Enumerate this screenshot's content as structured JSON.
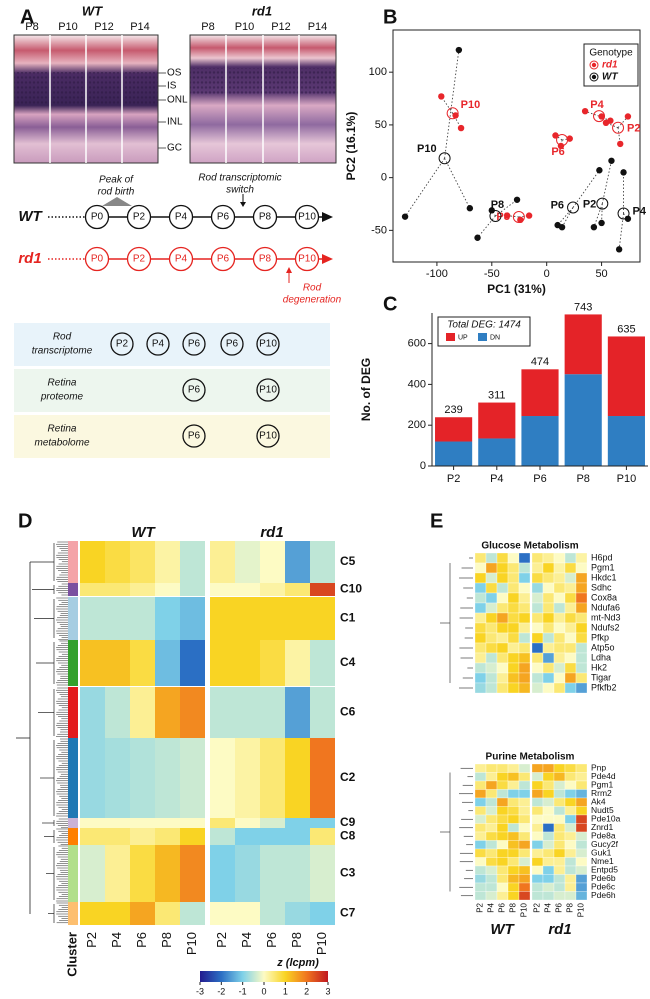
{
  "panel_a": {
    "label": "A",
    "wt_title": "WT",
    "rd1_title": "rd1",
    "wt_ages": [
      "P8",
      "P10",
      "P12",
      "P14"
    ],
    "rd1_ages": [
      "P8",
      "P10",
      "P12",
      "P14"
    ],
    "layers": [
      "OS",
      "IS",
      "ONL",
      "INL",
      "GC"
    ],
    "timeline": {
      "wt_label": "WT",
      "rd1_label": "rd1",
      "wt_color": "#111111",
      "rd1_color": "#e52420",
      "stages": [
        "P0",
        "P2",
        "P4",
        "P6",
        "P8",
        "P10"
      ],
      "peak_note": [
        "Peak of",
        "rod birth"
      ],
      "switch_note": [
        "Rod transcriptomic",
        "switch"
      ],
      "degeneration_note": [
        "Rod",
        "degeneration"
      ]
    },
    "table": [
      {
        "label": [
          "Rod",
          "transcriptome"
        ],
        "color": "#e8f3fa",
        "stages": [
          "P2",
          "P4",
          "P6",
          "P6",
          "P10"
        ]
      },
      {
        "label": [
          "Retina",
          "proteome"
        ],
        "color": "#edf6ee",
        "stages": [
          null,
          null,
          "P6",
          null,
          "P10"
        ]
      },
      {
        "label": [
          "Retina",
          "metabolome"
        ],
        "color": "#fbf8e0",
        "stages": [
          null,
          null,
          "P6",
          null,
          "P10"
        ]
      }
    ]
  },
  "chart_data": [
    {
      "type": "scatter",
      "panel_label": "B",
      "xlabel": "PC1 (31%)",
      "ylabel": "PC2 (16.1%)",
      "xlim": [
        -140,
        85
      ],
      "ylim": [
        -80,
        140
      ],
      "xticks": [
        -100,
        -50,
        0,
        50
      ],
      "yticks": [
        -50,
        0,
        50,
        100
      ],
      "legend_title": "Genotype",
      "legend": "top-right",
      "series": [
        {
          "name": "rd1",
          "color": "#e8262b",
          "groups": [
            {
              "label": "P10",
              "x": [
                -96,
                -83,
                -78
              ],
              "y": [
                77,
                59,
                47
              ]
            },
            {
              "label": "P4",
              "x": [
                35,
                50,
                58
              ],
              "y": [
                63,
                58,
                54
              ]
            },
            {
              "label": "P2",
              "x": [
                54,
                67,
                74
              ],
              "y": [
                52,
                32,
                58
              ]
            },
            {
              "label": "P6",
              "x": [
                8,
                13,
                21
              ],
              "y": [
                40,
                30,
                37
              ]
            },
            {
              "label": "P8",
              "x": [
                -36,
                -24,
                -16
              ],
              "y": [
                -36,
                -40,
                -36
              ]
            }
          ]
        },
        {
          "name": "WT",
          "color": "#111111",
          "groups": [
            {
              "label": "P10",
              "x": [
                -80,
                -129,
                -70
              ],
              "y": [
                121,
                -37,
                -29
              ]
            },
            {
              "label": "P8",
              "x": [
                -63,
                -50,
                -27
              ],
              "y": [
                -57,
                -31,
                -21
              ]
            },
            {
              "label": "P6",
              "x": [
                10,
                14,
                48
              ],
              "y": [
                -45,
                -47,
                7
              ]
            },
            {
              "label": "P2",
              "x": [
                43,
                50,
                59
              ],
              "y": [
                -47,
                -43,
                16
              ]
            },
            {
              "label": "P4",
              "x": [
                70,
                66,
                74
              ],
              "y": [
                5,
                -68,
                -39
              ]
            }
          ]
        }
      ]
    },
    {
      "type": "bar",
      "stacked": true,
      "panel_label": "C",
      "ylabel": "No. of DEG",
      "categories": [
        "P2",
        "P4",
        "P6",
        "P8",
        "P10"
      ],
      "ylim": [
        0,
        750
      ],
      "yticks": [
        0,
        200,
        400,
        600
      ],
      "legend_title": "Total DEG: 1474",
      "legend": "top-left",
      "series": [
        {
          "name": "DN",
          "color": "#2f7ec2",
          "values": [
            120,
            135,
            245,
            450,
            245
          ]
        },
        {
          "name": "UP",
          "color": "#e42328",
          "values": [
            119,
            176,
            229,
            293,
            390
          ]
        }
      ],
      "totals": [
        239,
        311,
        474,
        743,
        635
      ]
    }
  ],
  "panel_d": {
    "label": "D",
    "wt_title": "WT",
    "rd1_title": "rd1",
    "cluster_axis": "Cluster",
    "columns": [
      "P2",
      "P4",
      "P6",
      "P8",
      "P10"
    ],
    "clusters": [
      {
        "name": "C5",
        "color": "#f4a3a8",
        "wt": [
          1,
          0.8,
          0.6,
          0.2,
          -0.5
        ],
        "rd1": [
          0.3,
          -0.2,
          0,
          -1.5,
          -0.5
        ]
      },
      {
        "name": "C10",
        "color": "#7b4fa0",
        "wt": [
          0.5,
          0.5,
          0.3,
          0,
          -0.5
        ],
        "rd1": [
          0,
          0,
          0.2,
          0.5,
          2.5
        ]
      },
      {
        "name": "C1",
        "color": "#a6cde2",
        "wt": [
          -0.5,
          -0.5,
          -0.5,
          -1,
          -1.2
        ],
        "rd1": [
          1,
          1,
          1,
          1,
          1
        ]
      },
      {
        "name": "C4",
        "color": "#33a02c",
        "wt": [
          1.2,
          1.2,
          0.8,
          -1.2,
          -2
        ],
        "rd1": [
          1,
          1,
          0.8,
          0.2,
          -0.5
        ]
      },
      {
        "name": "C6",
        "color": "#e31a1c",
        "wt": [
          -0.8,
          -0.5,
          0.3,
          1.5,
          1.8
        ],
        "rd1": [
          -0.5,
          -0.5,
          -0.5,
          -1.5,
          -0.5
        ]
      },
      {
        "name": "C2",
        "color": "#1f78b4",
        "wt": [
          -0.8,
          -0.7,
          -0.6,
          -0.5,
          -0.4
        ],
        "rd1": [
          0,
          0.2,
          0.5,
          1,
          2
        ]
      },
      {
        "name": "C9",
        "color": "#cab2d6",
        "wt": [
          0,
          0,
          0,
          0,
          0
        ],
        "rd1": [
          0.5,
          0,
          -0.3,
          -1,
          -1
        ]
      },
      {
        "name": "C8",
        "color": "#ff7f00",
        "wt": [
          0.5,
          0.5,
          0.3,
          0.5,
          1
        ],
        "rd1": [
          -0.5,
          -1,
          -1,
          -1,
          0.5
        ]
      },
      {
        "name": "C3",
        "color": "#b2df8a",
        "wt": [
          -0.3,
          0.3,
          0.8,
          1.3,
          1.8
        ],
        "rd1": [
          -1,
          -0.8,
          -0.5,
          -0.5,
          -0.3
        ]
      },
      {
        "name": "C7",
        "color": "#fdbf6f",
        "wt": [
          1,
          1,
          1.5,
          0.5,
          -0.5
        ],
        "rd1": [
          0,
          0,
          -0.5,
          -0.8,
          -1
        ]
      }
    ],
    "colorbar": {
      "title": "z (lcpm)",
      "lim": [
        -3,
        3
      ],
      "ticks": [
        -3,
        -2,
        -1,
        0,
        1,
        2,
        3
      ],
      "colors": [
        "#231b8f",
        "#2b6fc4",
        "#7fd1e8",
        "#fdfbc4",
        "#f9d423",
        "#f0761f",
        "#c01820"
      ]
    }
  },
  "panel_e": {
    "label": "E",
    "wt_title": "WT",
    "rd1_title": "rd1",
    "columns": [
      "P2",
      "P4",
      "P6",
      "P8",
      "P10"
    ],
    "heatmaps": [
      {
        "title": "Glucose Metabolism",
        "rows": [
          "H6pd",
          "Pgm1",
          "Hkdc1",
          "Sdhc",
          "Cox8a",
          "Ndufa6",
          "mt-Nd3",
          "Ndufs2",
          "Pfkp",
          "Atp5o",
          "Ldha",
          "Hk2",
          "Tigar",
          "Pfkfb2"
        ],
        "wt": [
          [
            0.5,
            -0.5,
            0.8,
            0,
            -2
          ],
          [
            0,
            1.5,
            1,
            0.5,
            -0.5
          ],
          [
            1,
            -0.3,
            1,
            0.5,
            -1
          ],
          [
            -1,
            0.8,
            -0.5,
            0.5,
            0
          ],
          [
            -0.5,
            -1,
            0,
            1,
            0.3
          ],
          [
            -1,
            -0.3,
            0.5,
            0.8,
            0.5
          ],
          [
            0.3,
            1,
            1.5,
            0.8,
            1
          ],
          [
            0.8,
            0.5,
            1,
            1,
            0.3
          ],
          [
            1,
            0.5,
            0.3,
            0.8,
            -0.5
          ],
          [
            0.5,
            0.8,
            1,
            0.3,
            0.5
          ],
          [
            0.3,
            -0.5,
            0.5,
            1,
            1.2
          ],
          [
            -0.5,
            -0.3,
            0,
            1,
            1.5
          ],
          [
            -1,
            -0.5,
            0.3,
            1.2,
            1.5
          ],
          [
            -0.8,
            -0.5,
            0.5,
            1,
            1.3
          ]
        ],
        "rd1": [
          [
            0.5,
            0.3,
            0,
            -0.5,
            0.2
          ],
          [
            0.3,
            1,
            0.2,
            0.8,
            0
          ],
          [
            0.8,
            0.5,
            0.3,
            -0.3,
            1.5
          ],
          [
            -0.8,
            0,
            0.5,
            0.3,
            1.5
          ],
          [
            -0.3,
            0.5,
            0,
            0.8,
            2
          ],
          [
            -0.5,
            0.5,
            -0.5,
            0.3,
            1.5
          ],
          [
            0.5,
            1,
            0.3,
            0.8,
            0.5
          ],
          [
            0,
            0.5,
            0,
            0.3,
            1
          ],
          [
            1,
            -0.5,
            0.5,
            0,
            0.8
          ],
          [
            -2,
            0.3,
            0.5,
            0.5,
            -0.5
          ],
          [
            0.5,
            -1.5,
            0.3,
            0,
            -0.5
          ],
          [
            0,
            0.5,
            -0.3,
            0.8,
            -0.5
          ],
          [
            -0.5,
            -1,
            0,
            1.5,
            0.5
          ],
          [
            -0.3,
            0,
            0.5,
            -1,
            -1.5
          ]
        ]
      },
      {
        "title": "Purine Metabolism",
        "rows": [
          "Pnp",
          "Pde4d",
          "Pgm1",
          "Rrm2",
          "Ak4",
          "Nudt5",
          "Pde10a",
          "Znrd1",
          "Pde8a",
          "Gucy2f",
          "Guk1",
          "Nme1",
          "Entpd5",
          "Pde6b",
          "Pde6c",
          "Pde6h"
        ],
        "wt": [
          [
            0.3,
            0.5,
            0.5,
            0.3,
            -0.3
          ],
          [
            -0.5,
            0.3,
            1,
            1.2,
            0.5
          ],
          [
            0.5,
            1.5,
            0.8,
            0.3,
            -0.5
          ],
          [
            1.5,
            0.5,
            -0.5,
            -1,
            -1
          ],
          [
            -1,
            -0.5,
            1.5,
            0.5,
            0.3
          ],
          [
            0.5,
            -0.3,
            1,
            0.8,
            0.3
          ],
          [
            -0.3,
            0.5,
            0.8,
            1,
            0.5
          ],
          [
            0.5,
            0.3,
            1,
            -0.5,
            0
          ],
          [
            0.3,
            0.8,
            1,
            1.2,
            0.5
          ],
          [
            -1,
            -0.5,
            0,
            1.2,
            1.5
          ],
          [
            0.8,
            0.5,
            1,
            1,
            0.5
          ],
          [
            0,
            0.8,
            1,
            0.5,
            -0.3
          ],
          [
            -0.5,
            -0.3,
            0.5,
            1,
            1.2
          ],
          [
            -0.8,
            -0.5,
            0.5,
            1.3,
            1.5
          ],
          [
            -0.5,
            -0.5,
            0,
            1,
            2
          ],
          [
            -0.5,
            -0.3,
            0.3,
            1,
            2.5
          ]
        ],
        "rd1": [
          [
            1.5,
            1.5,
            1,
            0.8,
            0.5
          ],
          [
            -0.3,
            1,
            1.3,
            0.5,
            0.3
          ],
          [
            1,
            0.5,
            -0.3,
            0,
            0.5
          ],
          [
            1.5,
            1,
            -0.5,
            -1,
            -1.3
          ],
          [
            -0.5,
            -0.3,
            0.5,
            1,
            1.5
          ],
          [
            0.5,
            0,
            -0.5,
            0.3,
            1
          ],
          [
            0,
            0,
            0,
            -1,
            2.5
          ],
          [
            0.3,
            -2,
            0.5,
            -0.3,
            2.5
          ],
          [
            0,
            -0.5,
            0.5,
            0.3,
            -0.3
          ],
          [
            -1,
            -0.3,
            0.5,
            0,
            -0.5
          ],
          [
            0.3,
            0.5,
            1,
            0.3,
            -0.3
          ],
          [
            1,
            0.3,
            0.3,
            -0.5,
            0
          ],
          [
            0,
            -1,
            0.3,
            -0.5,
            -0.3
          ],
          [
            -1,
            -1,
            -0.5,
            0.3,
            -1.5
          ],
          [
            -0.5,
            -0.3,
            -0.5,
            0.3,
            -1.5
          ],
          [
            -0.5,
            -0.5,
            -0.3,
            -0.3,
            -1.3
          ]
        ]
      }
    ]
  }
}
